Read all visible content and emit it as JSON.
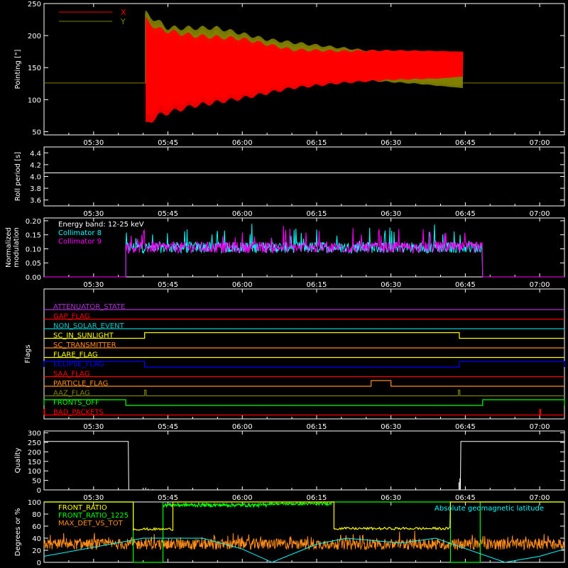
{
  "x_axis": {
    "ticks": [
      "05:30",
      "05:45",
      "06:00",
      "06:15",
      "06:30",
      "06:45",
      "07:00"
    ],
    "tick_minutes": [
      330,
      345,
      360,
      375,
      390,
      405,
      420
    ],
    "range_minutes": [
      320,
      425
    ]
  },
  "colors": {
    "red": "#ff0000",
    "olive": "#808000",
    "white": "#ffffff",
    "cyan": "#00ffff",
    "magenta": "#ff00ff",
    "green": "#00ff00",
    "yellow": "#ffff00",
    "orange": "#ff8c1a",
    "blue": "#0000ff",
    "purple": "#aa33cc",
    "teal": "#00c8c8"
  },
  "chart_data": [
    {
      "id": "pointing",
      "type": "line",
      "ylabel": "Pointing [\"]",
      "ylim": [
        45,
        250
      ],
      "yticks": [
        50,
        100,
        150,
        200,
        250
      ],
      "series": [
        {
          "name": "X",
          "color": "#ff0000",
          "envelope": [
            [
              340.4,
              126,
              126
            ],
            [
              340.5,
              60,
              225
            ],
            [
              343,
              75,
              210
            ],
            [
              350,
              90,
              200
            ],
            [
              360,
              102,
              195
            ],
            [
              370,
              118,
              178
            ],
            [
              380,
              126,
              176
            ],
            [
              390,
              131,
              177
            ],
            [
              400,
              133,
              176
            ],
            [
              404.5,
              136,
              175
            ],
            [
              404.6,
              126,
              126
            ],
            [
              425,
              126,
              126
            ]
          ]
        },
        {
          "name": "Y",
          "color": "#808000",
          "envelope": [
            [
              320,
              126,
              126
            ],
            [
              340.4,
              126,
              126
            ],
            [
              340.5,
              105,
              235
            ],
            [
              345,
              117,
              212
            ],
            [
              355,
              125,
              212
            ],
            [
              365,
              132,
              194
            ],
            [
              375,
              136,
              185
            ],
            [
              385,
              130,
              177
            ],
            [
              395,
              125,
              176
            ],
            [
              404.5,
              118,
              172
            ],
            [
              404.6,
              126,
              126
            ],
            [
              425,
              126,
              126
            ]
          ]
        }
      ]
    },
    {
      "id": "roll",
      "type": "line",
      "ylabel": "Roll period [s]",
      "ylim": [
        3.5,
        4.5
      ],
      "yticks": [
        "3.6",
        "3.8",
        "4.0",
        "4.2",
        "4.4"
      ],
      "ytick_values": [
        3.6,
        3.8,
        4.0,
        4.2,
        4.4
      ],
      "series": [
        {
          "name": "Roll period",
          "color": "#ffffff",
          "x": [
            320,
            425
          ],
          "y": [
            4.06,
            4.06
          ]
        }
      ]
    },
    {
      "id": "modulation",
      "type": "line",
      "ylabel": "Normalized modulation",
      "ylim": [
        0,
        0.21
      ],
      "yticks": [
        "0.00",
        "0.05",
        "0.10",
        "0.15",
        "0.20"
      ],
      "ytick_values": [
        0,
        0.05,
        0.1,
        0.15,
        0.2
      ],
      "legend": [
        "Energy band: 12-25 keV",
        "Collimator 8",
        "Collimator 9"
      ],
      "legend_colors": [
        "#ffffff",
        "#00ffff",
        "#ff00ff"
      ],
      "active_range": [
        336.5,
        408.5
      ],
      "level": 0.105,
      "series": [
        {
          "name": "Collimator 8",
          "color": "#00ffff"
        },
        {
          "name": "Collimator 9",
          "color": "#ff00ff"
        }
      ]
    },
    {
      "id": "flags",
      "type": "line",
      "ylabel": "Flags",
      "flags": [
        {
          "name": "ATTENUATOR_STATE",
          "color": "#aa33cc",
          "on": []
        },
        {
          "name": "GAP_FLAG",
          "color": "#ff0000",
          "on": []
        },
        {
          "name": "NON_SOLAR_EVENT",
          "color": "#00c8c8",
          "on": []
        },
        {
          "name": "SC_IN_SUNLIGHT",
          "color": "#ffff00",
          "on": [
            [
              340.3,
              403.8
            ]
          ]
        },
        {
          "name": "SC_TRANSMITTER",
          "color": "#ff8c1a",
          "on": []
        },
        {
          "name": "FLARE_FLAG",
          "color": "#ffff00",
          "on": []
        },
        {
          "name": "ECLIPSE_FLAG",
          "color": "#0000ff",
          "on": [
            [
              320,
              340.3
            ],
            [
              403.8,
              425
            ]
          ],
          "inverted": true
        },
        {
          "name": "SAA_FLAG",
          "color": "#ff0000",
          "on": []
        },
        {
          "name": "PARTICLE_FLAG",
          "color": "#ff8c1a",
          "on": [
            [
              386,
              390
            ]
          ]
        },
        {
          "name": "AAZ_FLAG",
          "color": "#808000",
          "on": [
            [
              340.3,
              340.6
            ],
            [
              403.6,
              403.9
            ]
          ]
        },
        {
          "name": "FRONTS_OFF",
          "color": "#00ff00",
          "on": [
            [
              320,
              336.5
            ],
            [
              408.5,
              425
            ]
          ]
        },
        {
          "name": "BAD_PACKETS",
          "color": "#ff0000",
          "on": [
            [
              320,
              320.1
            ],
            [
              420,
              420.2
            ]
          ]
        }
      ]
    },
    {
      "id": "quality",
      "type": "line",
      "ylabel": "Quality",
      "ylim": [
        0,
        310
      ],
      "yticks": [
        0,
        50,
        100,
        150,
        200,
        250,
        300
      ],
      "series": [
        {
          "name": "Quality",
          "color": "#ffffff",
          "x": [
            320,
            337,
            337.1,
            404,
            404.1,
            425
          ],
          "y": [
            255,
            255,
            0,
            0,
            255,
            255
          ]
        }
      ]
    },
    {
      "id": "front_ratio",
      "type": "line",
      "ylabel": "Degrees or %",
      "ylim": [
        0,
        100
      ],
      "yticks": [
        0,
        20,
        40,
        60,
        80,
        100
      ],
      "legend": [
        "FRONT_RATIO",
        "FRONT_RATIO_1225",
        "MAX_DET_VS_TOT"
      ],
      "legend_colors": [
        "#ffff00",
        "#00ff00",
        "#ff8c1a"
      ],
      "annotation": "Absolute geomagnetic latitude",
      "annotation_color": "#00ffff",
      "series": [
        {
          "name": "FRONT_RATIO",
          "color": "#ffff00"
        },
        {
          "name": "FRONT_RATIO_1225",
          "color": "#00ff00"
        },
        {
          "name": "MAX_DET_VS_TOT",
          "color": "#ff8c1a"
        },
        {
          "name": "Absolute geomagnetic latitude",
          "color": "#00ffff",
          "x": [
            320,
            340,
            352,
            360,
            366,
            375,
            381,
            392,
            399,
            413,
            420,
            425
          ],
          "y": [
            10,
            40,
            40,
            22,
            0,
            30,
            40,
            32,
            40,
            0,
            10,
            22
          ]
        }
      ]
    }
  ]
}
